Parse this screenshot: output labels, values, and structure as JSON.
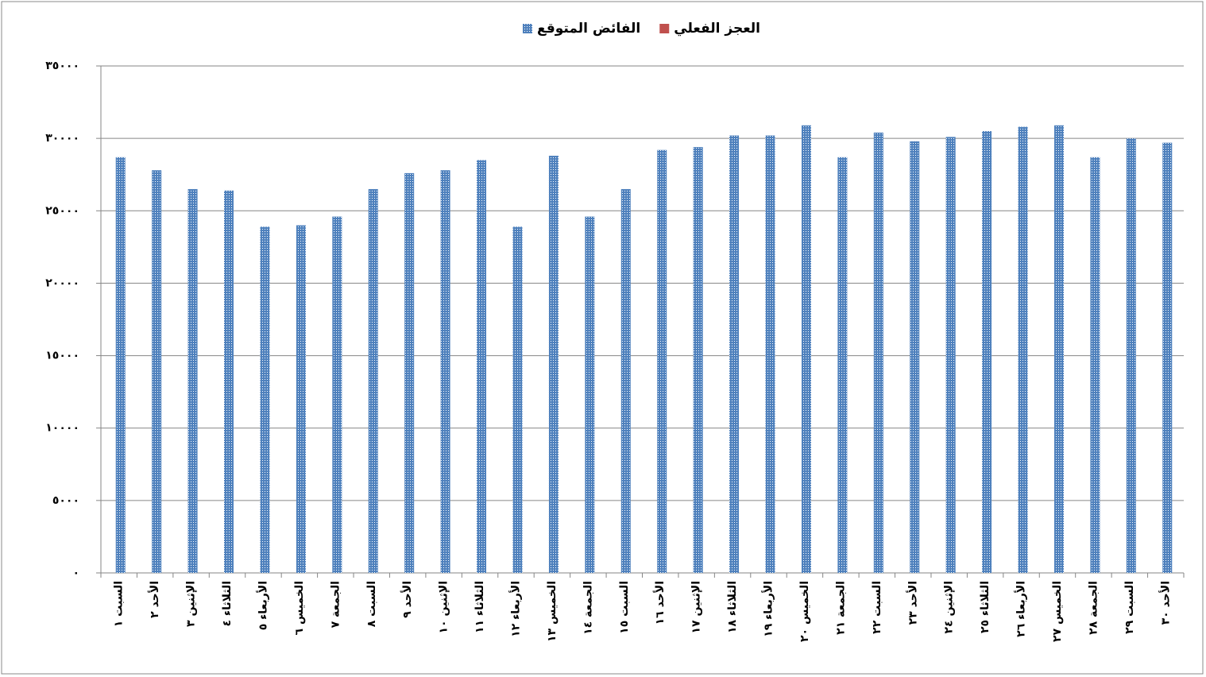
{
  "chart_data": {
    "type": "bar",
    "categories": [
      "السبت ١",
      "الأحد ٢",
      "الإثنين ٣",
      "الثلاثاء ٤",
      "الأربعاء ٥",
      "الخميس ٦",
      "الجمعة ٧",
      "السبت ٨",
      "الأحد ٩",
      "الإثنين ١٠",
      "الثلاثاء ١١",
      "الأربعاء ١٢",
      "الخميس ١٣",
      "الجمعة ١٤",
      "السبت ١٥",
      "الأحد ١٦",
      "الإثنين ١٧",
      "الثلاثاء ١٨",
      "الأربعاء ١٩",
      "الخميس ٢٠",
      "الجمعة ٢١",
      "السبت ٢٢",
      "الأحد ٢٣",
      "الإثنين ٢٤",
      "الثلاثاء ٢٥",
      "الأربعاء ٢٦",
      "الخميس ٢٧",
      "الجمعة ٢٨",
      "السبت ٢٩",
      "الأحد ٣٠"
    ],
    "series": [
      {
        "name": "العجز الفعلي",
        "color": "#c0504d",
        "values": [
          null,
          null,
          null,
          null,
          null,
          null,
          null,
          null,
          null,
          null,
          null,
          null,
          null,
          null,
          null,
          null,
          null,
          null,
          null,
          null,
          null,
          null,
          null,
          null,
          null,
          null,
          null,
          null,
          null,
          null
        ]
      },
      {
        "name": "الفائض المتوقع",
        "color": "#4f81bd",
        "values": [
          28700,
          27800,
          26500,
          26400,
          23900,
          24000,
          24600,
          26500,
          27600,
          27800,
          28500,
          23900,
          28800,
          24600,
          26500,
          29200,
          29400,
          30200,
          30200,
          30900,
          28700,
          30400,
          29800,
          30100,
          30500,
          30800,
          30900,
          28700,
          30000,
          29700
        ]
      }
    ],
    "ylim": [
      0,
      35000
    ],
    "yticks": [
      {
        "value": 0,
        "label": "٠"
      },
      {
        "value": 5000,
        "label": "٥٠٠٠"
      },
      {
        "value": 10000,
        "label": "١٠٠٠٠"
      },
      {
        "value": 15000,
        "label": "١٥٠٠٠"
      },
      {
        "value": 20000,
        "label": "٢٠٠٠٠"
      },
      {
        "value": 25000,
        "label": "٢٥٠٠٠"
      },
      {
        "value": 30000,
        "label": "٣٠٠٠٠"
      },
      {
        "value": 35000,
        "label": "٣٥٠٠٠"
      }
    ],
    "grid": true
  }
}
